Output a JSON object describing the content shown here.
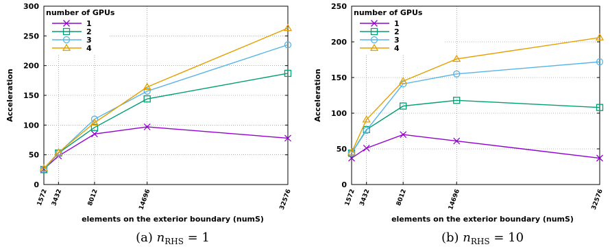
{
  "chart_data": [
    {
      "type": "line",
      "caption": {
        "prefix": "(a) ",
        "n": "n",
        "sub": "RHS",
        "suffix": " = 1"
      },
      "xlabel": "elements on the exterior boundary (numS)",
      "ylabel": "Acceleration",
      "x": [
        1572,
        3432,
        8012,
        14696,
        32576
      ],
      "xlim": [
        1572,
        32576
      ],
      "ylim": [
        0,
        300
      ],
      "yticks": [
        0,
        50,
        100,
        150,
        200,
        250,
        300
      ],
      "legend_title": "number of GPUs",
      "legend_position": "top-left",
      "grid": true,
      "series": [
        {
          "name": "1",
          "color": "#9400d3",
          "marker": "x",
          "values": [
            26,
            48,
            85,
            97,
            78
          ]
        },
        {
          "name": "2",
          "color": "#009e73",
          "marker": "square",
          "values": [
            25,
            53,
            96,
            144,
            187
          ]
        },
        {
          "name": "3",
          "color": "#56b4e9",
          "marker": "circle",
          "values": [
            26,
            53,
            110,
            157,
            235
          ]
        },
        {
          "name": "4",
          "color": "#e69f00",
          "marker": "triangle",
          "values": [
            27,
            54,
            104,
            164,
            263
          ]
        }
      ]
    },
    {
      "type": "line",
      "caption": {
        "prefix": "(b) ",
        "n": "n",
        "sub": "RHS",
        "suffix": " = 10"
      },
      "xlabel": "elements on the exterior boundary (numS)",
      "ylabel": "Acceleration",
      "x": [
        1572,
        3432,
        8012,
        14696,
        32576
      ],
      "xlim": [
        1572,
        32576
      ],
      "ylim": [
        0,
        250
      ],
      "yticks": [
        0,
        50,
        100,
        150,
        200,
        250
      ],
      "legend_title": "number of GPUs",
      "legend_position": "top-left",
      "grid": true,
      "series": [
        {
          "name": "1",
          "color": "#9400d3",
          "marker": "x",
          "values": [
            37,
            51,
            70,
            61,
            37
          ]
        },
        {
          "name": "2",
          "color": "#009e73",
          "marker": "square",
          "values": [
            44,
            77,
            110,
            118,
            108
          ]
        },
        {
          "name": "3",
          "color": "#56b4e9",
          "marker": "circle",
          "values": [
            44,
            76,
            141,
            155,
            172
          ]
        },
        {
          "name": "4",
          "color": "#e69f00",
          "marker": "triangle",
          "values": [
            45,
            91,
            145,
            176,
            206
          ]
        }
      ]
    }
  ]
}
